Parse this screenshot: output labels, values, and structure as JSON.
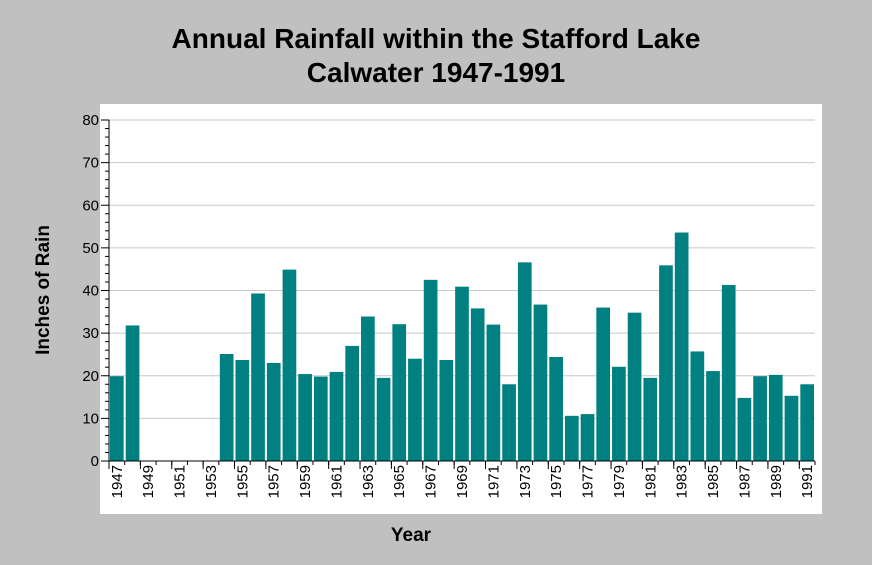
{
  "chart_data": {
    "type": "bar",
    "title_lines": [
      "Annual Rainfall within the Stafford Lake",
      "Calwater 1947-1991"
    ],
    "xlabel": "Year",
    "ylabel": "Inches of Rain",
    "ylim": [
      0,
      80
    ],
    "yticks": [
      0,
      10,
      20,
      30,
      40,
      50,
      60,
      70,
      80
    ],
    "grid": true,
    "legend": "none",
    "bar_color": "#008080",
    "categories": [
      "1947",
      "1948",
      "1949",
      "1950",
      "1951",
      "1952",
      "1953",
      "1954",
      "1955",
      "1956",
      "1957",
      "1958",
      "1959",
      "1960",
      "1961",
      "1962",
      "1963",
      "1964",
      "1965",
      "1966",
      "1967",
      "1968",
      "1969",
      "1970",
      "1971",
      "1972",
      "1973",
      "1974",
      "1975",
      "1976",
      "1977",
      "1978",
      "1979",
      "1980",
      "1981",
      "1982",
      "1983",
      "1984",
      "1985",
      "1986",
      "1987",
      "1988",
      "1989",
      "1990",
      "1991"
    ],
    "tick_labels": [
      "1947",
      "1949",
      "1951",
      "1953",
      "1955",
      "1957",
      "1959",
      "1961",
      "1963",
      "1965",
      "1967",
      "1969",
      "1971",
      "1973",
      "1975",
      "1977",
      "1979",
      "1981",
      "1983",
      "1985",
      "1987",
      "1989",
      "1991"
    ],
    "values": [
      19.9,
      31.8,
      null,
      null,
      null,
      null,
      null,
      25.1,
      23.7,
      39.3,
      23.0,
      44.9,
      20.4,
      19.8,
      20.9,
      27.0,
      33.9,
      19.5,
      32.1,
      24.0,
      42.5,
      23.7,
      40.9,
      35.8,
      32.0,
      18.0,
      46.6,
      36.7,
      24.4,
      10.6,
      11.0,
      36.0,
      22.1,
      34.8,
      19.5,
      45.9,
      53.6,
      25.7,
      21.1,
      41.3,
      14.8,
      19.9,
      20.2,
      15.3,
      18.0
    ]
  }
}
